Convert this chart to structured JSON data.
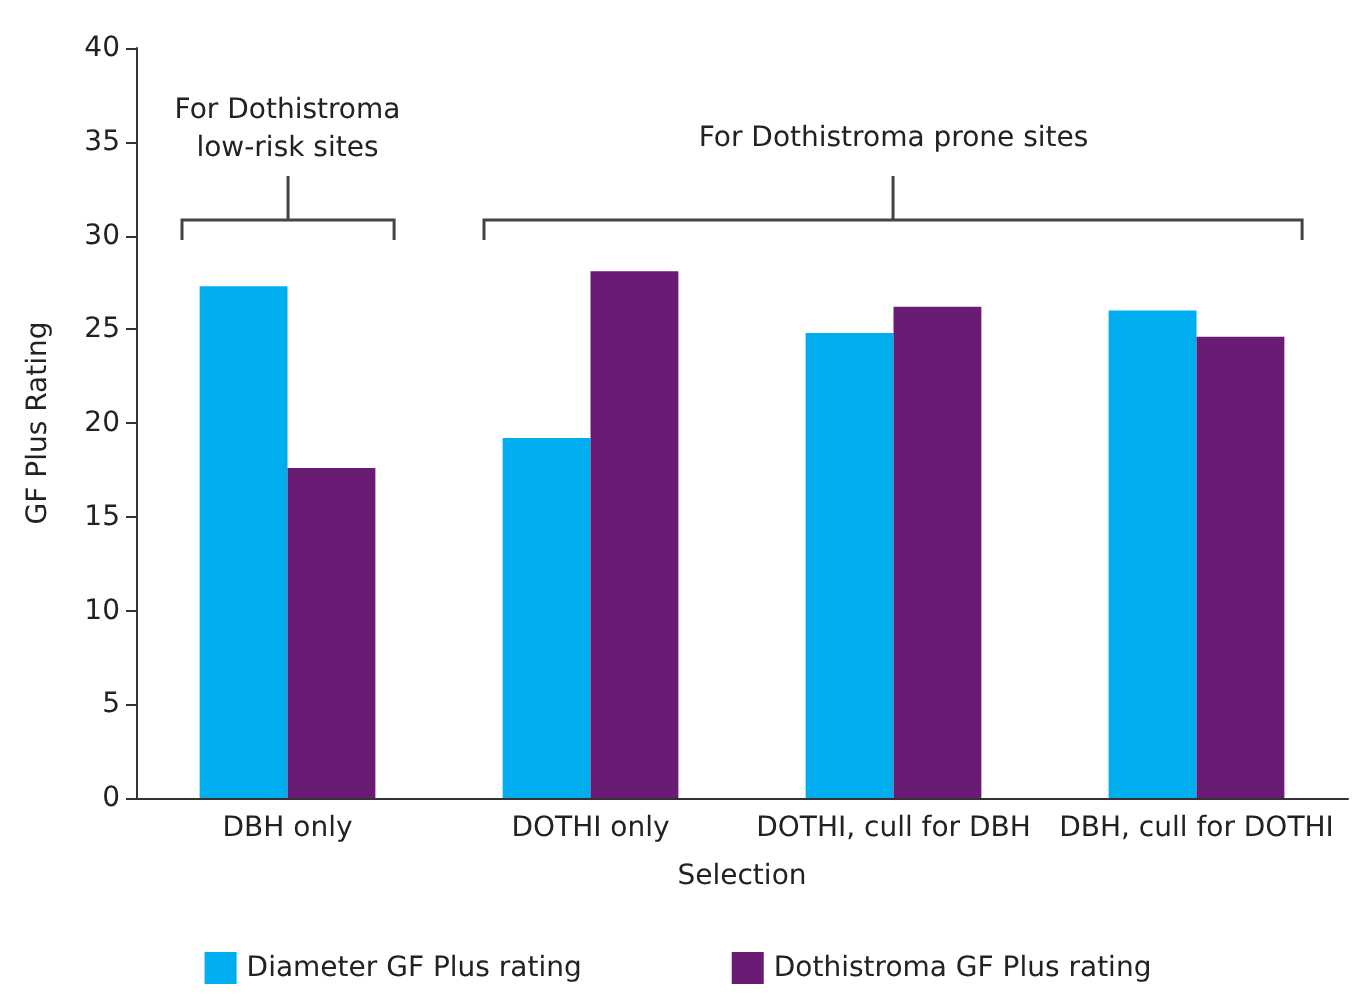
{
  "chart_data": {
    "type": "bar",
    "xlabel": "Selection",
    "ylabel": "GF Plus Rating",
    "categories": [
      "DBH only",
      "DOTHI only",
      "DOTHI, cull for DBH",
      "DBH, cull for DOTHI"
    ],
    "series": [
      {
        "name": "Diameter GF Plus rating",
        "color": "#00adee",
        "values": [
          27.3,
          19.2,
          24.8,
          26.0
        ]
      },
      {
        "name": "Dothistroma GF Plus rating",
        "color": "#6a1b74",
        "values": [
          17.6,
          28.1,
          26.2,
          24.6
        ]
      }
    ],
    "ylim": [
      0,
      40
    ],
    "yticks": [
      0,
      5,
      10,
      15,
      20,
      25,
      30,
      35,
      40
    ],
    "grid": false,
    "legend": "bottom",
    "annotations": [
      "For Dothistroma low-risk sites",
      "For Dothistroma prone sites"
    ]
  }
}
